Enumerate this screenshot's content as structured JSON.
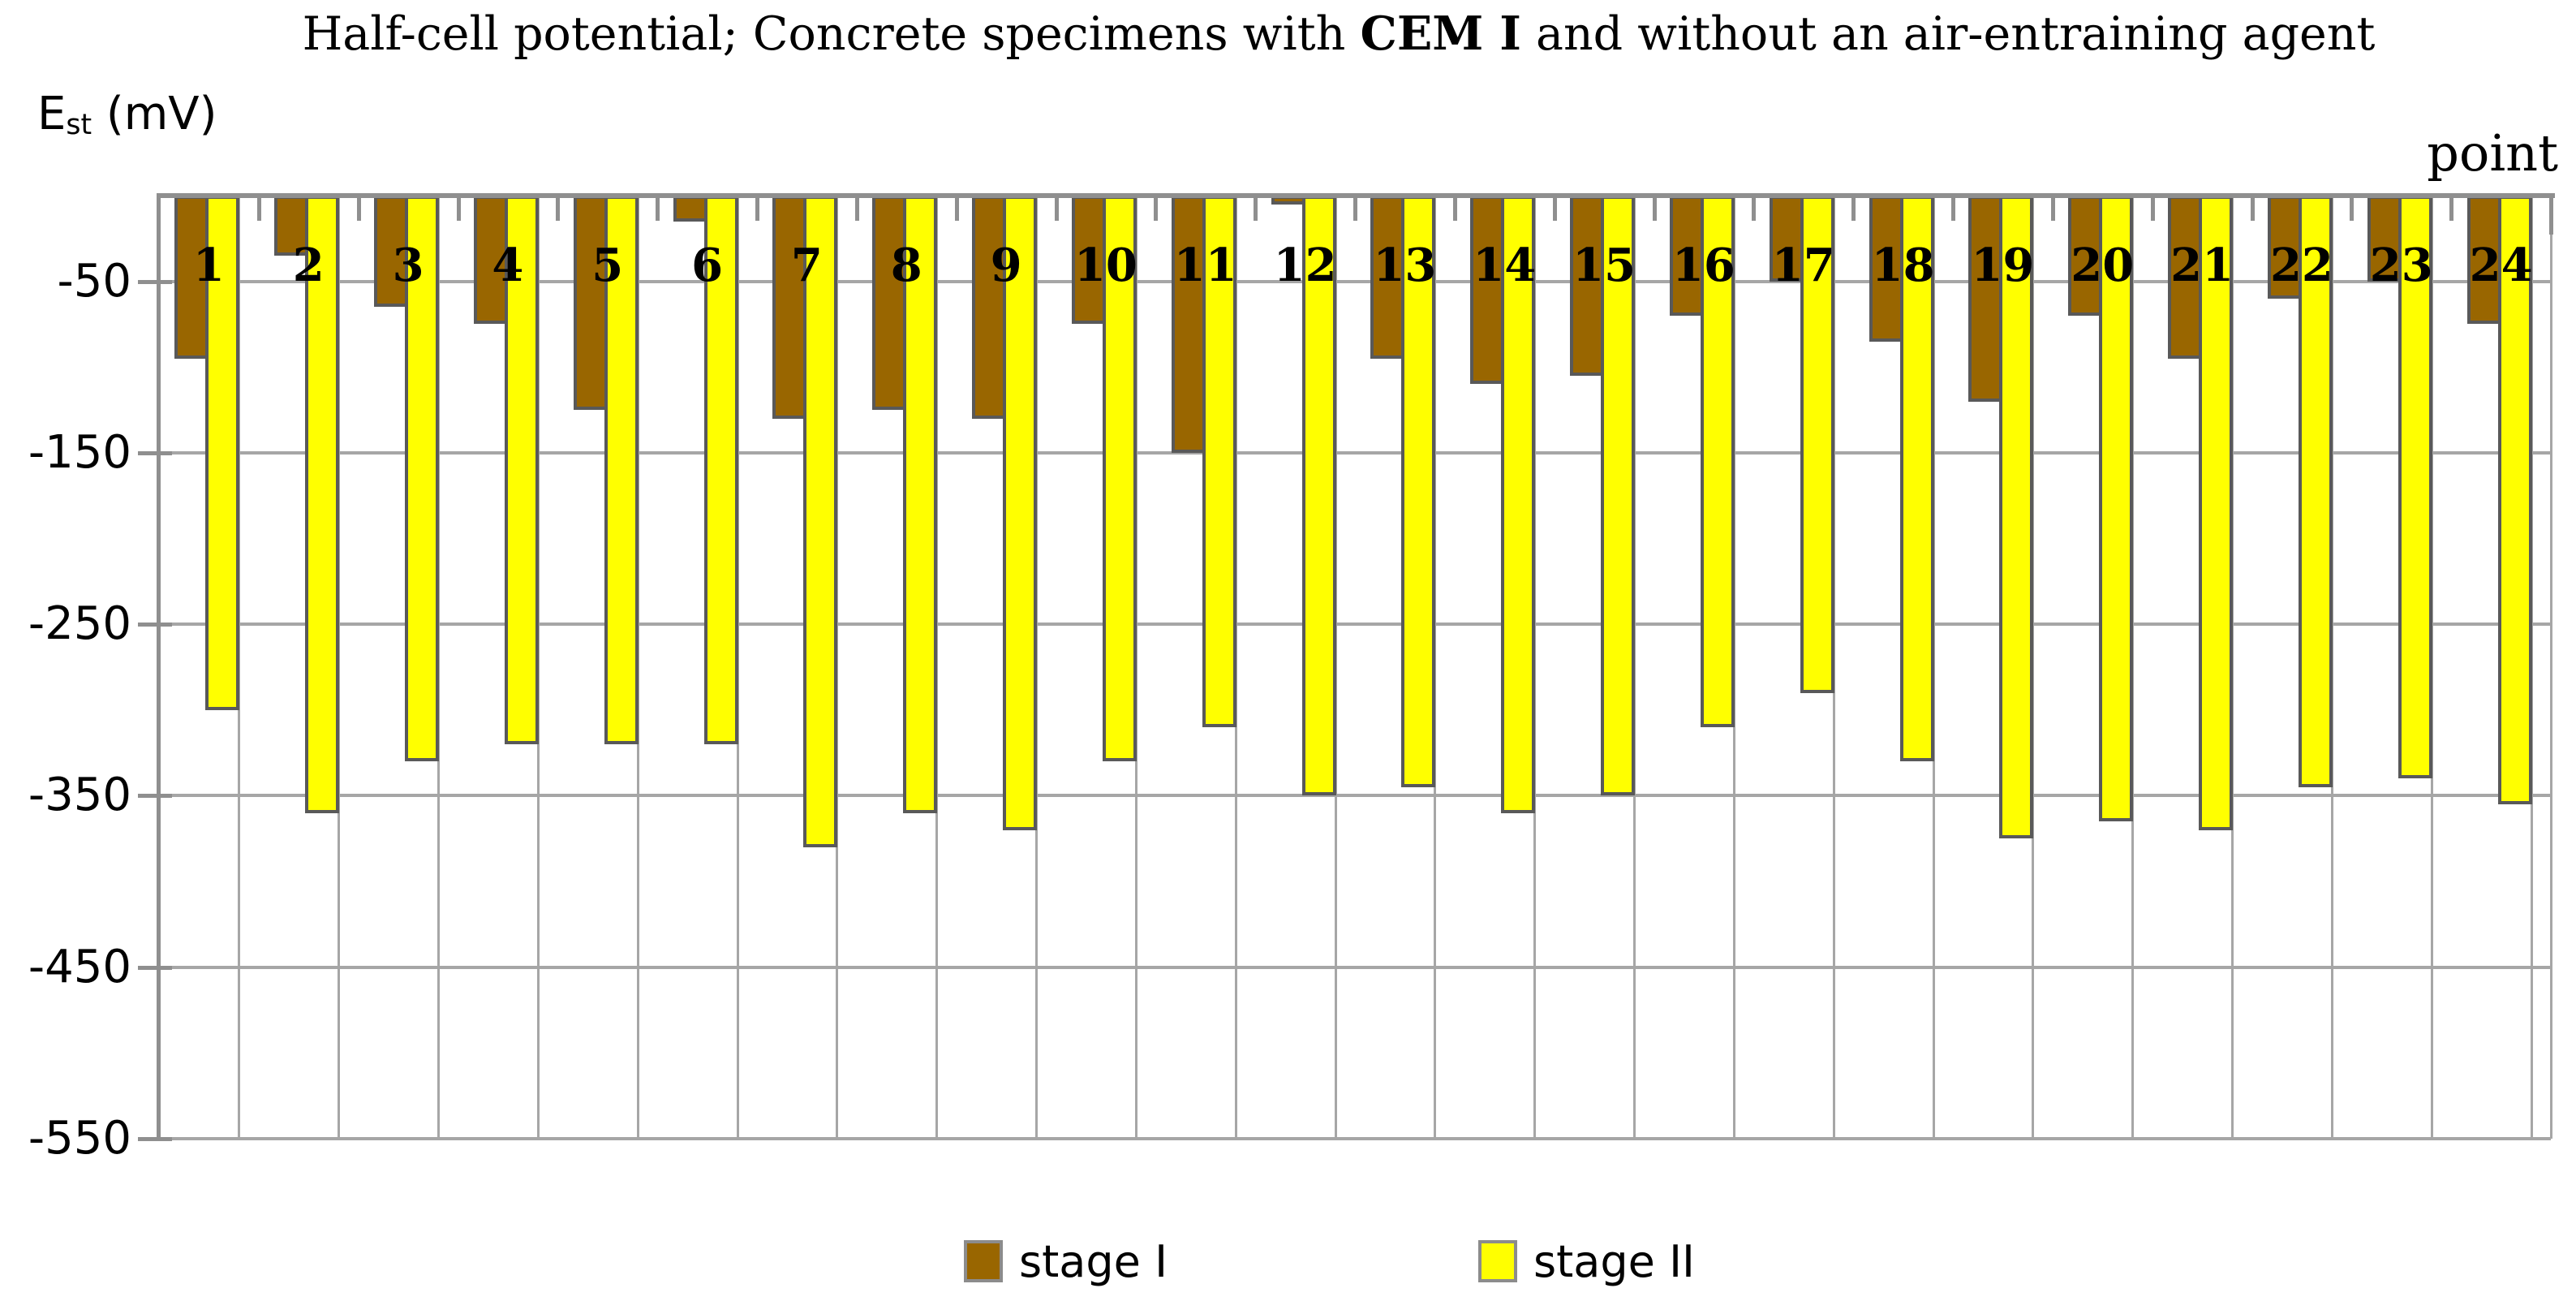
{
  "title": {
    "prefix": "Half-cell potential; Concrete specimens with ",
    "bold_segment": "CEM I",
    "suffix": " and without an air-entraining agent"
  },
  "y_axis_title": {
    "symbol": "E",
    "subscript": "st",
    "unit": " (mV)"
  },
  "x_axis_label": "point",
  "legend": [
    {
      "label": "stage I",
      "color": "#996600"
    },
    {
      "label": "stage II",
      "color": "#FFFF00"
    }
  ],
  "colors": {
    "stage1_fill": "#996600",
    "stage2_fill": "#FFFF00",
    "bar_border": "#595959",
    "gridline": "#A6A6A6",
    "axis": "#8F8F8F",
    "text": "#000000",
    "background": "#FFFFFF"
  },
  "chart_data": {
    "type": "bar",
    "title": "Half-cell potential; Concrete specimens with CEM I and without an air-entraining agent",
    "xlabel": "point",
    "ylabel": "Est (mV)",
    "categories": [
      "1",
      "2",
      "3",
      "4",
      "5",
      "6",
      "7",
      "8",
      "9",
      "10",
      "11",
      "12",
      "13",
      "14",
      "15",
      "16",
      "17",
      "18",
      "19",
      "20",
      "21",
      "22",
      "23",
      "24"
    ],
    "series": [
      {
        "name": "stage I",
        "values": [
          -95,
          -35,
          -65,
          -75,
          -125,
          -15,
          -130,
          -125,
          -130,
          -75,
          -150,
          -5,
          -95,
          -110,
          -105,
          -70,
          -50,
          -85,
          -120,
          -70,
          -95,
          -60,
          -50,
          -75
        ]
      },
      {
        "name": "stage II",
        "values": [
          -300,
          -360,
          -330,
          -320,
          -320,
          -320,
          -380,
          -360,
          -370,
          -330,
          -310,
          -350,
          -345,
          -360,
          -350,
          -310,
          -290,
          -330,
          -375,
          -365,
          -370,
          -345,
          -340,
          -355
        ]
      }
    ],
    "ylim": [
      -550,
      0
    ],
    "yticks": [
      -50,
      -150,
      -250,
      -350,
      -450,
      -550
    ],
    "grid": "horizontal gridlines every 100 mV plus faint vertical category lines",
    "legend_position": "bottom"
  }
}
